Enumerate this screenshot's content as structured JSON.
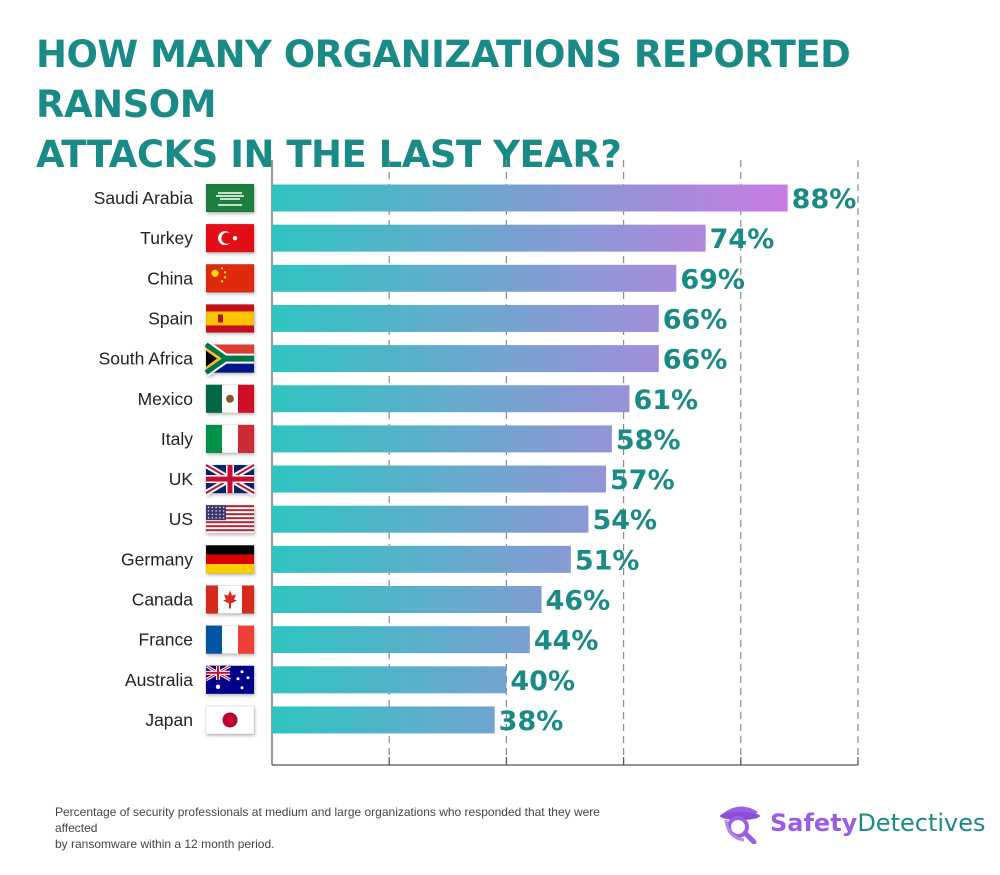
{
  "title_lines": [
    "HOW MANY ORGANIZATIONS REPORTED RANSOM",
    "ATTACKS IN THE LAST YEAR?"
  ],
  "footnote_lines": [
    "Percentage of security professionals at medium and large organizations who responded that they were affected",
    "by ransomware within a 12 month period."
  ],
  "brand": {
    "part1": "Safety",
    "part2": "Detectives",
    "icon": "detective-icon"
  },
  "colors": {
    "title": "#1a8a87",
    "value_label": "#1a8a87",
    "bar_gradient_start": "#2ec4c0",
    "bar_gradient_end": "#c97be3",
    "brand_purple": "#9b5de5",
    "brand_teal": "#1a8a87"
  },
  "chart_data": {
    "type": "bar",
    "orientation": "horizontal",
    "categories": [
      "Saudi Arabia",
      "Turkey",
      "China",
      "Spain",
      "South Africa",
      "Mexico",
      "Italy",
      "UK",
      "US",
      "Germany",
      "Canada",
      "France",
      "Australia",
      "Japan"
    ],
    "values": [
      88,
      74,
      69,
      66,
      66,
      61,
      58,
      57,
      54,
      51,
      46,
      44,
      40,
      38
    ],
    "value_labels": [
      "88%",
      "74%",
      "69%",
      "66%",
      "66%",
      "61%",
      "58%",
      "57%",
      "54%",
      "51%",
      "46%",
      "44%",
      "40%",
      "38%"
    ],
    "flags": [
      "flag-saudi-arabia-icon",
      "flag-turkey-icon",
      "flag-china-icon",
      "flag-spain-icon",
      "flag-south-africa-icon",
      "flag-mexico-icon",
      "flag-italy-icon",
      "flag-uk-icon",
      "flag-us-icon",
      "flag-germany-icon",
      "flag-canada-icon",
      "flag-france-icon",
      "flag-australia-icon",
      "flag-japan-icon"
    ],
    "xlim": [
      0,
      100
    ],
    "grid": true,
    "grid_style": "dashed vertical",
    "legend": "none"
  }
}
